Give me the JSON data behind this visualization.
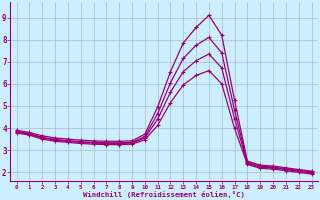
{
  "xlabel": "Windchill (Refroidissement éolien,°C)",
  "background_color": "#cceeff",
  "line_color": "#990077",
  "grid_color": "#aabbcc",
  "xlim": [
    -0.5,
    23.5
  ],
  "ylim": [
    1.6,
    9.7
  ],
  "xticks": [
    0,
    1,
    2,
    3,
    4,
    5,
    6,
    7,
    8,
    9,
    10,
    11,
    12,
    13,
    14,
    15,
    16,
    17,
    18,
    19,
    20,
    21,
    22,
    23
  ],
  "yticks": [
    2,
    3,
    4,
    5,
    6,
    7,
    8,
    9
  ],
  "series": {
    "line1": [
      3.9,
      3.8,
      3.65,
      3.55,
      3.5,
      3.45,
      3.42,
      3.4,
      3.4,
      3.42,
      3.72,
      4.95,
      6.55,
      7.85,
      8.55,
      9.1,
      8.2,
      5.25,
      2.5,
      2.32,
      2.28,
      2.2,
      2.12,
      2.05
    ],
    "line2": [
      3.85,
      3.75,
      3.58,
      3.48,
      3.43,
      3.38,
      3.35,
      3.33,
      3.33,
      3.35,
      3.62,
      4.65,
      6.05,
      7.15,
      7.75,
      8.1,
      7.4,
      4.8,
      2.45,
      2.27,
      2.23,
      2.16,
      2.08,
      2.01
    ],
    "line3": [
      3.82,
      3.72,
      3.55,
      3.45,
      3.4,
      3.35,
      3.32,
      3.3,
      3.3,
      3.32,
      3.55,
      4.4,
      5.62,
      6.55,
      7.05,
      7.35,
      6.72,
      4.42,
      2.4,
      2.23,
      2.19,
      2.12,
      2.04,
      1.97
    ],
    "line4": [
      3.78,
      3.68,
      3.5,
      3.4,
      3.35,
      3.3,
      3.27,
      3.25,
      3.25,
      3.27,
      3.47,
      4.12,
      5.15,
      5.95,
      6.38,
      6.6,
      6.0,
      3.98,
      2.35,
      2.18,
      2.14,
      2.07,
      1.99,
      1.92
    ]
  }
}
